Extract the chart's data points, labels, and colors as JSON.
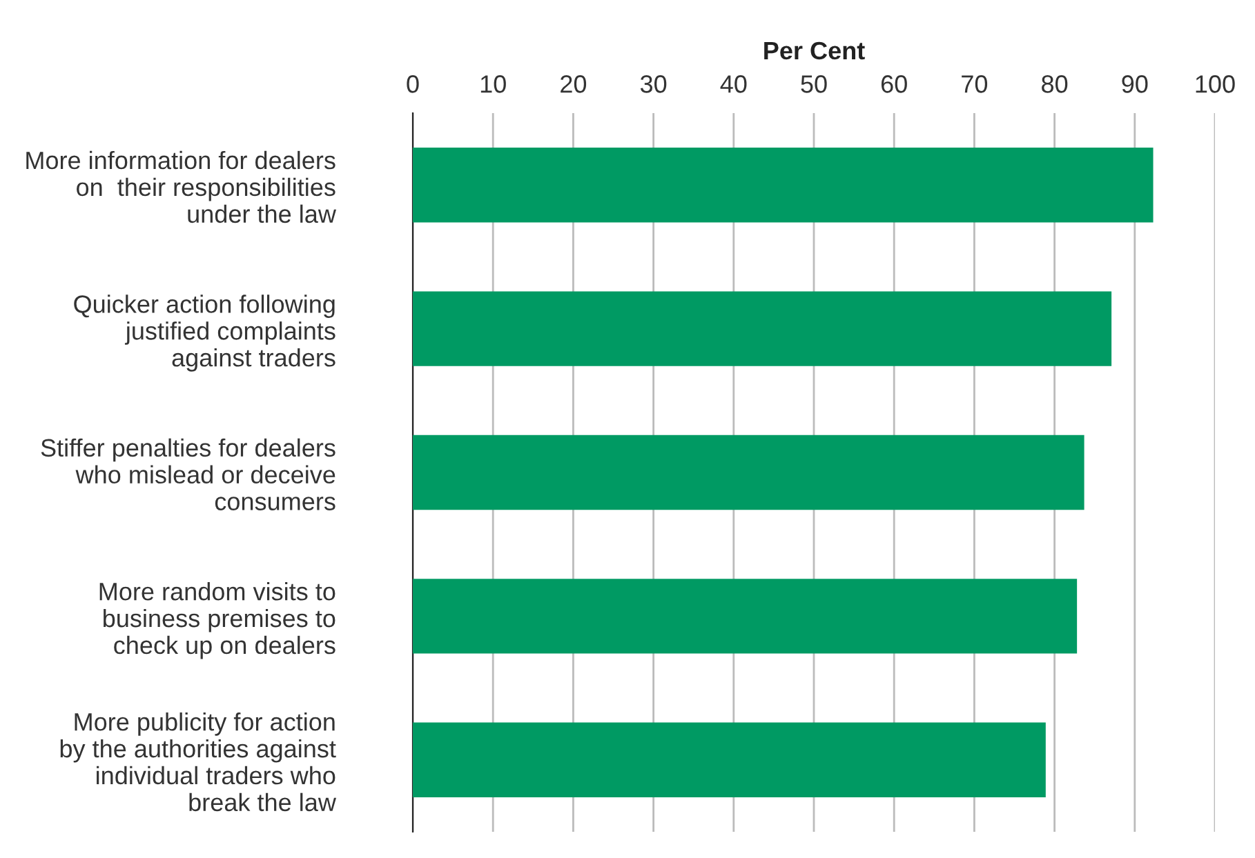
{
  "chart_data": {
    "type": "bar",
    "orientation": "horizontal",
    "xlabel": "Per Cent",
    "categories": [
      "More information for dealers\non  their responsibilities\nunder the law",
      "Quicker action following\njustified complaints\nagainst traders",
      "Stiffer penalties for dealers\nwho mislead or deceive\nconsumers",
      "More random visits to\nbusiness premises to\ncheck up on dealers",
      "More publicity for action\nby the authorities against\nindividual traders who\nbreak the law"
    ],
    "values": [
      92.3,
      87.1,
      83.7,
      82.8,
      78.9
    ],
    "color": "#009a63",
    "xlim": [
      0,
      100
    ],
    "xticks": [
      0,
      10,
      20,
      30,
      40,
      50,
      60,
      70,
      80,
      90,
      100
    ],
    "grid": "x"
  }
}
